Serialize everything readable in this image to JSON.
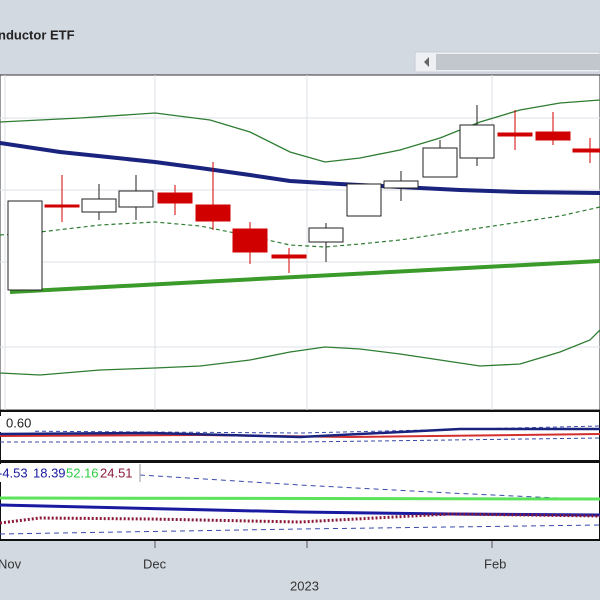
{
  "header": {
    "title": "nductor ETF"
  },
  "panel_macd": {
    "label": "0.60"
  },
  "panel_dmi": {
    "labels": [
      "-4.53",
      "18.39",
      "52.16",
      "24.51"
    ]
  },
  "x_axis": {
    "labels": [
      "Nov",
      "Dec",
      "2023",
      "Feb"
    ]
  }
}
